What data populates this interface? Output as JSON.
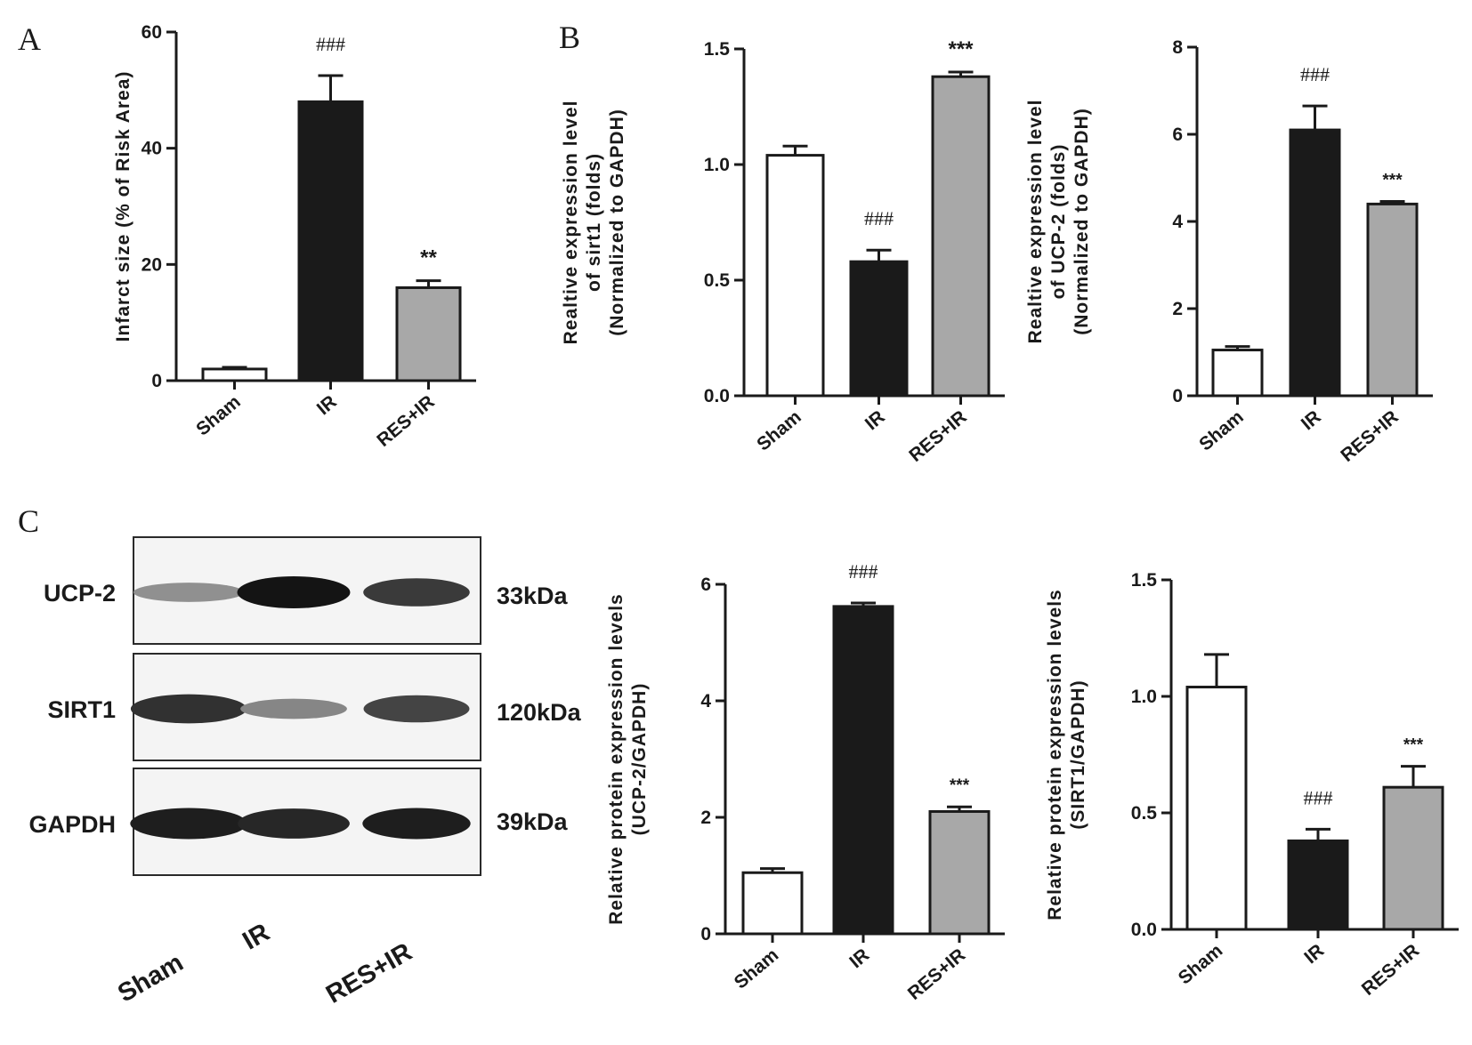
{
  "colors": {
    "sham": "#ffffff",
    "ir": "#1a1a1a",
    "res_ir": "#a8a8a8",
    "axis": "#1a1a1a"
  },
  "panels": {
    "A": "A",
    "B": "B",
    "C": "C"
  },
  "western_blot": {
    "rows": [
      {
        "label": "UCP-2",
        "kda": "33kDa",
        "intensities": [
          0.35,
          1.0,
          0.8
        ]
      },
      {
        "label": "SIRT1",
        "kda": "120kDa",
        "intensities": [
          0.85,
          0.4,
          0.75
        ]
      },
      {
        "label": "GAPDH",
        "kda": "39kDa",
        "intensities": [
          0.95,
          0.9,
          0.95
        ]
      }
    ],
    "lanes": [
      "Sham",
      "IR",
      "RES+IR"
    ]
  },
  "chart_data": [
    {
      "id": "infarct",
      "type": "bar",
      "categories": [
        "Sham",
        "IR",
        "RES+IR"
      ],
      "values": [
        2,
        48,
        16
      ],
      "errors": [
        0.3,
        4.5,
        1.2
      ],
      "annotations": [
        "",
        "###",
        "**"
      ],
      "ylabel": "Infarct size (% of Risk Area)",
      "ylim": [
        0,
        60
      ],
      "yticks": [
        "0",
        "20",
        "40",
        "60"
      ]
    },
    {
      "id": "sirt1-mrna",
      "type": "bar",
      "categories": [
        "Sham",
        "IR",
        "RES+IR"
      ],
      "values": [
        1.04,
        0.58,
        1.38
      ],
      "errors": [
        0.04,
        0.05,
        0.02
      ],
      "annotations": [
        "",
        "###",
        "***"
      ],
      "ylabel": [
        "Realtive expression level",
        "of sirt1 (folds)",
        "(Normalized to GAPDH)"
      ],
      "ylim": [
        0,
        1.5
      ],
      "yticks": [
        "0.0",
        "0.5",
        "1.0",
        "1.5"
      ]
    },
    {
      "id": "ucp2-mrna",
      "type": "bar",
      "categories": [
        "Sham",
        "IR",
        "RES+IR"
      ],
      "values": [
        1.05,
        6.1,
        4.4
      ],
      "errors": [
        0.08,
        0.55,
        0.06
      ],
      "annotations": [
        "",
        "###",
        "***"
      ],
      "ylabel": [
        "Realtive expression level",
        "of UCP-2 (folds)",
        "(Normalized to GAPDH)"
      ],
      "ylim": [
        0,
        8
      ],
      "yticks": [
        "0",
        "2",
        "4",
        "6",
        "8"
      ]
    },
    {
      "id": "ucp2-protein",
      "type": "bar",
      "categories": [
        "Sham",
        "IR",
        "RES+IR"
      ],
      "values": [
        1.05,
        5.62,
        2.1
      ],
      "errors": [
        0.07,
        0.06,
        0.08
      ],
      "annotations": [
        "",
        "###",
        "***"
      ],
      "ylabel": [
        "Relative protein expression levels",
        "(UCP-2/GAPDH)"
      ],
      "ylim": [
        0,
        6
      ],
      "yticks": [
        "0",
        "2",
        "4",
        "6"
      ]
    },
    {
      "id": "sirt1-protein",
      "type": "bar",
      "categories": [
        "Sham",
        "IR",
        "RES+IR"
      ],
      "values": [
        1.04,
        0.38,
        0.61
      ],
      "errors": [
        0.14,
        0.05,
        0.09
      ],
      "annotations": [
        "",
        "###",
        "***"
      ],
      "ylabel": [
        "Relative protein expression levels",
        "(SIRT1/GAPDH)"
      ],
      "ylim": [
        0,
        1.5
      ],
      "yticks": [
        "0.0",
        "0.5",
        "1.0",
        "1.5"
      ]
    }
  ]
}
